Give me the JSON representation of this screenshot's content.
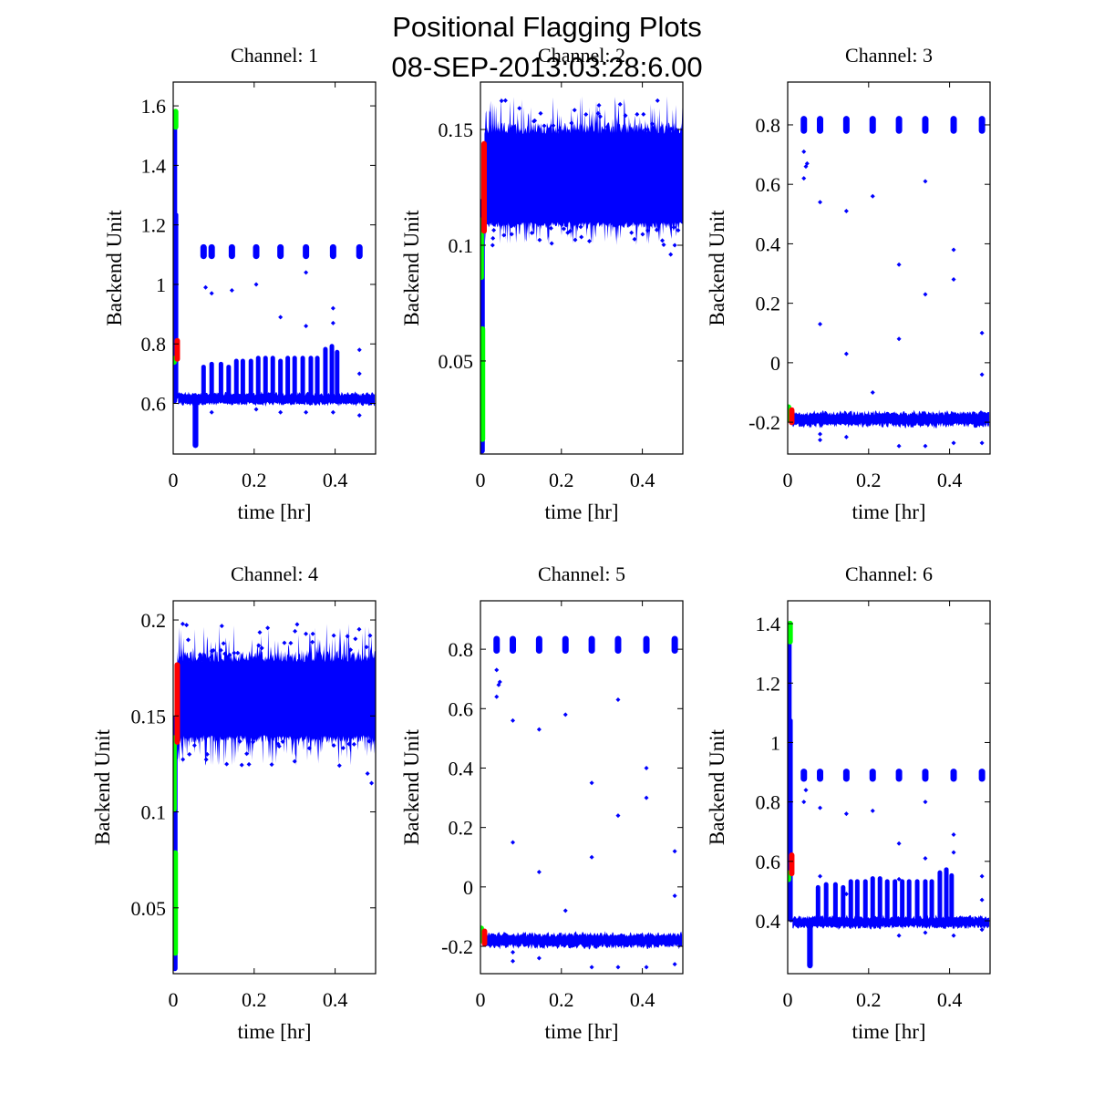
{
  "figure": {
    "title_line1": "Positional Flagging Plots",
    "title_line2": "08-SEP-2013:03:28:6.00"
  },
  "colors": {
    "data": "#0000ff",
    "flag_green": "#00ff00",
    "flag_red": "#ff0000",
    "axes": "#000000"
  },
  "chart_data": [
    {
      "type": "scatter",
      "title": "Channel: 1",
      "xlabel": "time [hr]",
      "ylabel": "Backend Unit",
      "xlim": [
        0,
        0.5
      ],
      "ylim": [
        0.43,
        1.68
      ],
      "xticks": [
        0,
        0.2,
        0.4
      ],
      "xtick_labels": [
        "0",
        "0.2",
        "0.4"
      ],
      "yticks": [
        0.6,
        0.8,
        1.0,
        1.2,
        1.4,
        1.6
      ],
      "ytick_labels": [
        "0.6",
        "0.8",
        "1",
        "1.2",
        "1.4",
        "1.6"
      ],
      "baseline": {
        "center": 0.615,
        "halfwidth": 0.018
      },
      "dip": {
        "t": [
          0.048,
          0.062
        ],
        "min": 0.45
      },
      "initial_ramp": {
        "top": 1.55,
        "bottom": 0.6
      },
      "spike_times": [
        0.075,
        0.095,
        0.118,
        0.137,
        0.156,
        0.172,
        0.192,
        0.21,
        0.228,
        0.246,
        0.265,
        0.283,
        0.3,
        0.32,
        0.34,
        0.356,
        0.376,
        0.392,
        0.405
      ],
      "spike_tops": [
        0.73,
        0.74,
        0.74,
        0.73,
        0.75,
        0.75,
        0.75,
        0.76,
        0.76,
        0.76,
        0.75,
        0.76,
        0.76,
        0.76,
        0.76,
        0.76,
        0.79,
        0.8,
        0.78
      ],
      "upper_cluster": {
        "times": [
          0.075,
          0.095,
          0.145,
          0.205,
          0.265,
          0.328,
          0.395,
          0.46
        ],
        "center": 1.11,
        "spread": 0.025
      },
      "outliers": [
        [
          0.08,
          0.99
        ],
        [
          0.095,
          0.97
        ],
        [
          0.145,
          0.98
        ],
        [
          0.205,
          1.0
        ],
        [
          0.265,
          0.89
        ],
        [
          0.328,
          1.04
        ],
        [
          0.328,
          0.86
        ],
        [
          0.395,
          0.92
        ],
        [
          0.395,
          0.87
        ],
        [
          0.46,
          0.78
        ],
        [
          0.46,
          0.7
        ],
        [
          0.46,
          0.56
        ],
        [
          0.095,
          0.57
        ],
        [
          0.205,
          0.58
        ],
        [
          0.265,
          0.57
        ],
        [
          0.328,
          0.57
        ],
        [
          0.395,
          0.57
        ]
      ],
      "flag_green": [
        [
          0.0,
          0.73,
          0.76
        ],
        [
          0.004,
          1.52,
          1.59
        ]
      ],
      "flag_red": [
        [
          0.008,
          0.74,
          0.82
        ]
      ]
    },
    {
      "type": "scatter",
      "title": "Channel: 2",
      "xlabel": "time [hr]",
      "ylabel": "Backend Unit",
      "xlim": [
        0,
        0.5
      ],
      "ylim": [
        0.0098,
        0.1705
      ],
      "xticks": [
        0,
        0.2,
        0.4
      ],
      "xtick_labels": [
        "0",
        "0.2",
        "0.4"
      ],
      "yticks": [
        0.05,
        0.1,
        0.15
      ],
      "ytick_labels": [
        "0.05",
        "0.1",
        "0.15"
      ],
      "band": {
        "low": 0.11,
        "high": 0.148,
        "peak_max": 0.165,
        "dip_min": 0.1
      },
      "initial_ramp": {
        "top": 0.12,
        "bottom": 0.01
      },
      "outliers": [
        [
          0.47,
          0.096
        ],
        [
          0.48,
          0.1
        ],
        [
          0.03,
          0.1
        ]
      ],
      "flag_green": [
        [
          0.0,
          0.085,
          0.112
        ],
        [
          0.003,
          0.015,
          0.065
        ]
      ],
      "flag_red": [
        [
          0.007,
          0.105,
          0.145
        ]
      ]
    },
    {
      "type": "scatter",
      "title": "Channel: 3",
      "xlabel": "time [hr]",
      "ylabel": "Backend Unit",
      "xlim": [
        0,
        0.5
      ],
      "ylim": [
        -0.307,
        0.944
      ],
      "xticks": [
        0,
        0.2,
        0.4
      ],
      "xtick_labels": [
        "0",
        "0.2",
        "0.4"
      ],
      "yticks": [
        -0.2,
        0,
        0.2,
        0.4,
        0.6,
        0.8
      ],
      "ytick_labels": [
        "-0.2",
        "0",
        "0.2",
        "0.4",
        "0.6",
        "0.8"
      ],
      "baseline": {
        "center": -0.19,
        "halfwidth": 0.022
      },
      "upper_cluster": {
        "times": [
          0.04,
          0.08,
          0.145,
          0.21,
          0.275,
          0.34,
          0.41,
          0.48
        ],
        "center": 0.8,
        "spread": 0.03
      },
      "outliers": [
        [
          0.04,
          0.71
        ],
        [
          0.045,
          0.66
        ],
        [
          0.048,
          0.67
        ],
        [
          0.04,
          0.62
        ],
        [
          0.08,
          0.54
        ],
        [
          0.08,
          0.13
        ],
        [
          0.145,
          0.51
        ],
        [
          0.145,
          0.03
        ],
        [
          0.21,
          0.56
        ],
        [
          0.21,
          -0.1
        ],
        [
          0.275,
          0.33
        ],
        [
          0.275,
          0.08
        ],
        [
          0.34,
          0.61
        ],
        [
          0.34,
          0.23
        ],
        [
          0.41,
          0.38
        ],
        [
          0.41,
          0.28
        ],
        [
          0.48,
          0.1
        ],
        [
          0.48,
          -0.04
        ],
        [
          0.08,
          -0.26
        ],
        [
          0.145,
          -0.25
        ],
        [
          0.275,
          -0.28
        ],
        [
          0.34,
          -0.28
        ],
        [
          0.41,
          -0.27
        ],
        [
          0.48,
          -0.27
        ],
        [
          0.08,
          -0.24
        ]
      ],
      "flag_green": [
        [
          0.0,
          -0.2,
          -0.14
        ]
      ],
      "flag_red": [
        [
          0.008,
          -0.21,
          -0.15
        ]
      ]
    },
    {
      "type": "scatter",
      "title": "Channel: 4",
      "xlabel": "time [hr]",
      "ylabel": "Backend Unit",
      "xlim": [
        0,
        0.5
      ],
      "ylim": [
        0.0157,
        0.21
      ],
      "xticks": [
        0,
        0.2,
        0.4
      ],
      "xtick_labels": [
        "0",
        "0.2",
        "0.4"
      ],
      "yticks": [
        0.05,
        0.1,
        0.15,
        0.2
      ],
      "ytick_labels": [
        "0.05",
        "0.1",
        "0.15",
        "0.2"
      ],
      "band": {
        "low": 0.14,
        "high": 0.178,
        "peak_max": 0.198,
        "dip_min": 0.124
      },
      "initial_ramp": {
        "top": 0.15,
        "bottom": 0.017
      },
      "outliers": [
        [
          0.49,
          0.115
        ],
        [
          0.48,
          0.12
        ],
        [
          0.04,
          0.13
        ]
      ],
      "flag_green": [
        [
          0.0,
          0.1,
          0.14
        ],
        [
          0.003,
          0.025,
          0.08
        ]
      ],
      "flag_red": [
        [
          0.008,
          0.135,
          0.178
        ]
      ]
    },
    {
      "type": "scatter",
      "title": "Channel: 5",
      "xlabel": "time [hr]",
      "ylabel": "Backend Unit",
      "xlim": [
        0,
        0.5
      ],
      "ylim": [
        -0.292,
        0.963
      ],
      "xticks": [
        0,
        0.2,
        0.4
      ],
      "xtick_labels": [
        "0",
        "0.2",
        "0.4"
      ],
      "yticks": [
        -0.2,
        0,
        0.2,
        0.4,
        0.6,
        0.8
      ],
      "ytick_labels": [
        "-0.2",
        "0",
        "0.2",
        "0.4",
        "0.6",
        "0.8"
      ],
      "baseline": {
        "center": -0.18,
        "halfwidth": 0.022
      },
      "upper_cluster": {
        "times": [
          0.04,
          0.08,
          0.145,
          0.21,
          0.275,
          0.34,
          0.41,
          0.48
        ],
        "center": 0.815,
        "spread": 0.03
      },
      "outliers": [
        [
          0.04,
          0.73
        ],
        [
          0.045,
          0.68
        ],
        [
          0.048,
          0.69
        ],
        [
          0.04,
          0.64
        ],
        [
          0.08,
          0.56
        ],
        [
          0.08,
          0.15
        ],
        [
          0.145,
          0.53
        ],
        [
          0.145,
          0.05
        ],
        [
          0.21,
          0.58
        ],
        [
          0.21,
          -0.08
        ],
        [
          0.275,
          0.35
        ],
        [
          0.275,
          0.1
        ],
        [
          0.34,
          0.63
        ],
        [
          0.34,
          0.24
        ],
        [
          0.41,
          0.4
        ],
        [
          0.41,
          0.3
        ],
        [
          0.48,
          0.12
        ],
        [
          0.48,
          -0.03
        ],
        [
          0.08,
          -0.25
        ],
        [
          0.145,
          -0.24
        ],
        [
          0.275,
          -0.27
        ],
        [
          0.34,
          -0.27
        ],
        [
          0.41,
          -0.27
        ],
        [
          0.48,
          -0.26
        ],
        [
          0.08,
          -0.22
        ]
      ],
      "flag_green": [
        [
          0.0,
          -0.19,
          -0.13
        ]
      ],
      "flag_red": [
        [
          0.008,
          -0.2,
          -0.14
        ]
      ]
    },
    {
      "type": "scatter",
      "title": "Channel: 6",
      "xlabel": "time [hr]",
      "ylabel": "Backend Unit",
      "xlim": [
        0,
        0.5
      ],
      "ylim": [
        0.222,
        1.477
      ],
      "xticks": [
        0,
        0.2,
        0.4
      ],
      "xtick_labels": [
        "0",
        "0.2",
        "0.4"
      ],
      "yticks": [
        0.4,
        0.6,
        0.8,
        1.0,
        1.2,
        1.4
      ],
      "ytick_labels": [
        "0.4",
        "0.6",
        "0.8",
        "1",
        "1.2",
        "1.4"
      ],
      "baseline": {
        "center": 0.395,
        "halfwidth": 0.018
      },
      "dip": {
        "t": [
          0.048,
          0.062
        ],
        "min": 0.24
      },
      "initial_ramp": {
        "top": 1.35,
        "bottom": 0.4
      },
      "spike_times": [
        0.075,
        0.095,
        0.118,
        0.137,
        0.156,
        0.172,
        0.192,
        0.21,
        0.228,
        0.246,
        0.265,
        0.283,
        0.3,
        0.32,
        0.34,
        0.356,
        0.376,
        0.392,
        0.405
      ],
      "spike_tops": [
        0.52,
        0.53,
        0.53,
        0.52,
        0.54,
        0.54,
        0.54,
        0.55,
        0.55,
        0.54,
        0.54,
        0.54,
        0.54,
        0.54,
        0.54,
        0.54,
        0.57,
        0.58,
        0.56
      ],
      "upper_cluster": {
        "times": [
          0.04,
          0.08,
          0.145,
          0.21,
          0.275,
          0.34,
          0.41,
          0.48
        ],
        "center": 0.89,
        "spread": 0.022
      },
      "outliers": [
        [
          0.04,
          0.8
        ],
        [
          0.045,
          0.84
        ],
        [
          0.08,
          0.78
        ],
        [
          0.145,
          0.76
        ],
        [
          0.21,
          0.77
        ],
        [
          0.275,
          0.66
        ],
        [
          0.34,
          0.8
        ],
        [
          0.34,
          0.61
        ],
        [
          0.41,
          0.69
        ],
        [
          0.41,
          0.63
        ],
        [
          0.48,
          0.55
        ],
        [
          0.48,
          0.47
        ],
        [
          0.145,
          0.49
        ],
        [
          0.21,
          0.44
        ],
        [
          0.275,
          0.54
        ],
        [
          0.08,
          0.55
        ],
        [
          0.275,
          0.35
        ],
        [
          0.34,
          0.36
        ],
        [
          0.41,
          0.35
        ],
        [
          0.48,
          0.37
        ]
      ],
      "flag_green": [
        [
          0.0,
          0.53,
          0.57
        ],
        [
          0.004,
          1.33,
          1.41
        ]
      ],
      "flag_red": [
        [
          0.008,
          0.55,
          0.63
        ]
      ]
    }
  ]
}
